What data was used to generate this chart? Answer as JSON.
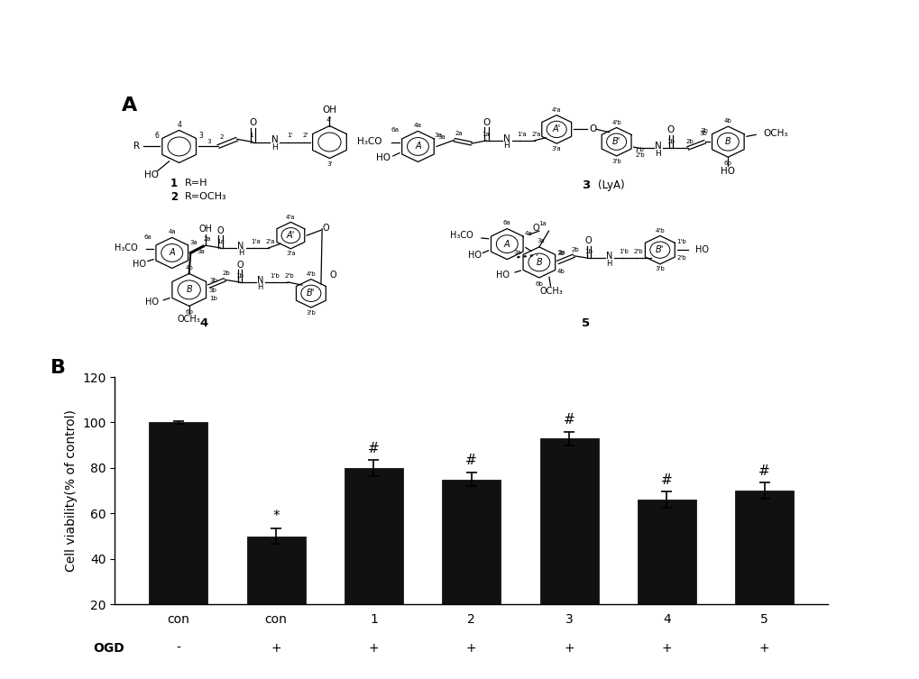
{
  "categories": [
    "con",
    "con",
    "1",
    "2",
    "3",
    "4",
    "5"
  ],
  "values": [
    100,
    50,
    80,
    75,
    93,
    66,
    70
  ],
  "errors": [
    0.5,
    3.5,
    3.5,
    3.0,
    3.0,
    3.5,
    3.5
  ],
  "bar_color": "#111111",
  "ylabel": "Cell viability(% of control)",
  "ylim": [
    20,
    120
  ],
  "yticks": [
    20,
    40,
    60,
    80,
    100,
    120
  ],
  "ogd_labels": [
    "-",
    "+",
    "+",
    "+",
    "+",
    "+",
    "+"
  ],
  "significance": [
    "",
    "*",
    "#",
    "#",
    "#",
    "#",
    "#"
  ],
  "panel_b_label": "B",
  "panel_a_label": "A",
  "background_color": "#ffffff",
  "bar_width": 0.6,
  "ogd_row_label": "OGD"
}
